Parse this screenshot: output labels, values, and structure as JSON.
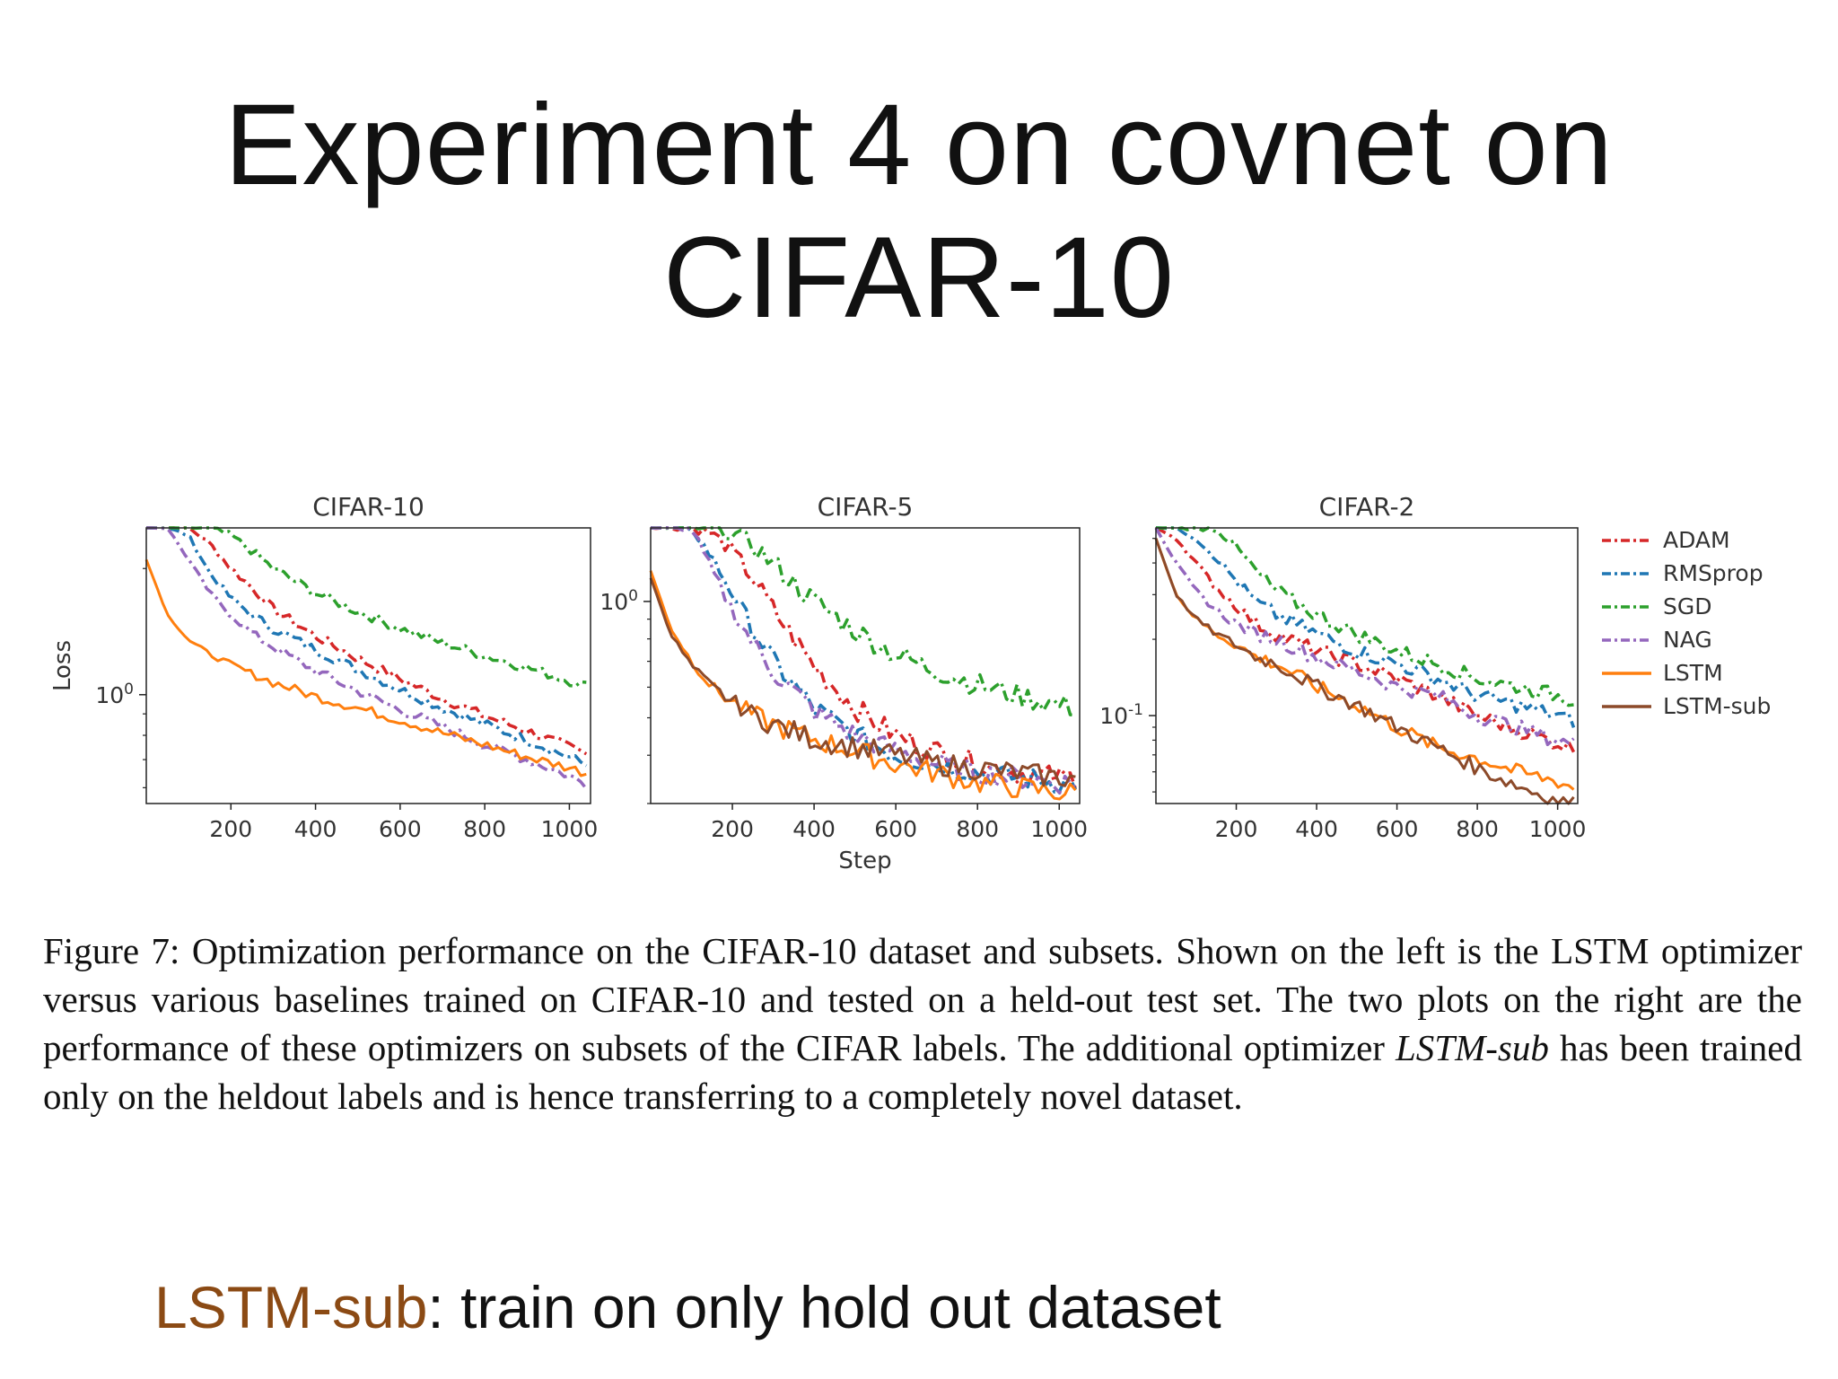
{
  "slide": {
    "title_line1": "Experiment 4 on covnet on",
    "title_line2": "CIFAR-10"
  },
  "caption": {
    "part1": "Figure 7: Optimization performance on the CIFAR-10 dataset and subsets. Shown on the left is the LSTM optimizer versus various baselines trained on CIFAR-10 and tested on a held-out test set. The two plots on the right are the performance of these optimizers on subsets of the CIFAR labels. The additional optimizer ",
    "emph": "LSTM-sub",
    "part2": " has been trained only on the heldout labels and is hence transferring to a completely novel dataset."
  },
  "note": {
    "highlight": "LSTM-sub",
    "rest": ": train on only hold out dataset",
    "highlight_color": "#8b4a14"
  },
  "shared": {
    "ylabel": "Loss",
    "xlabel": "Step",
    "xticks": [
      200,
      400,
      600,
      800,
      1000
    ],
    "legend": [
      {
        "name": "ADAM",
        "color": "#d62728",
        "style": "dashdot"
      },
      {
        "name": "RMSprop",
        "color": "#1f77b4",
        "style": "dashdot"
      },
      {
        "name": "SGD",
        "color": "#2ca02c",
        "style": "dashdot"
      },
      {
        "name": "NAG",
        "color": "#9467bd",
        "style": "dashdot"
      },
      {
        "name": "LSTM",
        "color": "#ff7f0e",
        "style": "solid"
      },
      {
        "name": "LSTM-sub",
        "color": "#8c4a2a",
        "style": "solid"
      }
    ]
  },
  "chart_data": [
    {
      "type": "line",
      "title": "CIFAR-10",
      "ylabel": "Loss",
      "xlabel": "",
      "yscale": "log",
      "xlim": [
        0,
        1050
      ],
      "ylim": [
        0.55,
        2.5
      ],
      "ytick_label": "10^0",
      "ytick_value": 1.0,
      "x": [
        0,
        50,
        100,
        150,
        200,
        250,
        300,
        400,
        500,
        600,
        700,
        800,
        900,
        1000,
        1040
      ],
      "series": [
        {
          "name": "ADAM",
          "values": [
            2.5,
            2.5,
            2.5,
            2.3,
            2.0,
            1.8,
            1.6,
            1.38,
            1.22,
            1.09,
            0.98,
            0.89,
            0.82,
            0.75,
            0.72
          ]
        },
        {
          "name": "RMSprop",
          "values": [
            2.5,
            2.5,
            2.4,
            1.95,
            1.7,
            1.55,
            1.44,
            1.28,
            1.15,
            1.03,
            0.93,
            0.85,
            0.78,
            0.71,
            0.68
          ]
        },
        {
          "name": "SGD",
          "values": [
            2.5,
            2.5,
            2.5,
            2.5,
            2.4,
            2.2,
            2.0,
            1.75,
            1.58,
            1.44,
            1.33,
            1.24,
            1.16,
            1.08,
            1.05
          ]
        },
        {
          "name": "NAG",
          "values": [
            2.5,
            2.5,
            2.1,
            1.75,
            1.55,
            1.4,
            1.3,
            1.14,
            1.02,
            0.92,
            0.84,
            0.76,
            0.7,
            0.64,
            0.61
          ]
        },
        {
          "name": "LSTM",
          "values": [
            2.1,
            1.55,
            1.35,
            1.25,
            1.18,
            1.12,
            1.07,
            0.99,
            0.93,
            0.87,
            0.81,
            0.76,
            0.71,
            0.67,
            0.65
          ]
        }
      ]
    },
    {
      "type": "line",
      "title": "CIFAR-5",
      "ylabel": "",
      "xlabel": "Step",
      "yscale": "log",
      "xlim": [
        0,
        1050
      ],
      "ylim": [
        0.3,
        1.55
      ],
      "ytick_label": "10^0",
      "ytick_value": 1.0,
      "x": [
        0,
        50,
        100,
        150,
        200,
        250,
        300,
        400,
        500,
        600,
        700,
        800,
        900,
        1000,
        1040
      ],
      "series": [
        {
          "name": "ADAM",
          "values": [
            1.55,
            1.55,
            1.55,
            1.5,
            1.35,
            1.15,
            0.95,
            0.68,
            0.53,
            0.45,
            0.41,
            0.38,
            0.36,
            0.35,
            0.35
          ]
        },
        {
          "name": "RMSprop",
          "values": [
            1.55,
            1.55,
            1.55,
            1.3,
            1.05,
            0.85,
            0.7,
            0.53,
            0.45,
            0.4,
            0.38,
            0.36,
            0.35,
            0.34,
            0.34
          ]
        },
        {
          "name": "SGD",
          "values": [
            1.55,
            1.55,
            1.55,
            1.55,
            1.5,
            1.4,
            1.25,
            1.0,
            0.84,
            0.73,
            0.66,
            0.61,
            0.57,
            0.54,
            0.53
          ]
        },
        {
          "name": "NAG",
          "values": [
            1.55,
            1.55,
            1.55,
            1.2,
            0.95,
            0.78,
            0.66,
            0.52,
            0.45,
            0.41,
            0.38,
            0.36,
            0.35,
            0.34,
            0.34
          ]
        },
        {
          "name": "LSTM",
          "values": [
            1.2,
            0.85,
            0.7,
            0.6,
            0.55,
            0.51,
            0.48,
            0.44,
            0.41,
            0.38,
            0.36,
            0.34,
            0.33,
            0.32,
            0.32
          ]
        },
        {
          "name": "LSTM-sub",
          "values": [
            1.15,
            0.82,
            0.68,
            0.6,
            0.55,
            0.51,
            0.48,
            0.44,
            0.42,
            0.4,
            0.38,
            0.37,
            0.36,
            0.35,
            0.35
          ]
        }
      ]
    },
    {
      "type": "line",
      "title": "CIFAR-2",
      "ylabel": "",
      "xlabel": "",
      "yscale": "log",
      "xlim": [
        0,
        1050
      ],
      "ylim": [
        0.045,
        0.55
      ],
      "ytick_label": "10^-1",
      "ytick_value": 0.1,
      "x": [
        0,
        50,
        100,
        150,
        200,
        250,
        300,
        400,
        500,
        600,
        700,
        800,
        900,
        1000,
        1040
      ],
      "series": [
        {
          "name": "ADAM",
          "values": [
            0.55,
            0.5,
            0.4,
            0.32,
            0.27,
            0.23,
            0.21,
            0.18,
            0.16,
            0.14,
            0.12,
            0.1,
            0.088,
            0.078,
            0.074
          ]
        },
        {
          "name": "RMSprop",
          "values": [
            0.55,
            0.55,
            0.5,
            0.42,
            0.34,
            0.28,
            0.25,
            0.21,
            0.18,
            0.16,
            0.14,
            0.12,
            0.11,
            0.1,
            0.095
          ]
        },
        {
          "name": "SGD",
          "values": [
            0.55,
            0.55,
            0.55,
            0.55,
            0.46,
            0.37,
            0.31,
            0.25,
            0.21,
            0.18,
            0.16,
            0.14,
            0.13,
            0.12,
            0.115
          ]
        },
        {
          "name": "NAG",
          "values": [
            0.55,
            0.4,
            0.31,
            0.26,
            0.23,
            0.21,
            0.2,
            0.17,
            0.15,
            0.13,
            0.12,
            0.1,
            0.09,
            0.08,
            0.077
          ]
        },
        {
          "name": "LSTM",
          "values": [
            0.5,
            0.3,
            0.24,
            0.21,
            0.19,
            0.17,
            0.16,
            0.13,
            0.11,
            0.09,
            0.075,
            0.068,
            0.06,
            0.055,
            0.052
          ]
        },
        {
          "name": "LSTM-sub",
          "values": [
            0.5,
            0.3,
            0.24,
            0.21,
            0.19,
            0.17,
            0.16,
            0.13,
            0.11,
            0.09,
            0.075,
            0.062,
            0.053,
            0.046,
            0.045
          ]
        }
      ]
    }
  ]
}
